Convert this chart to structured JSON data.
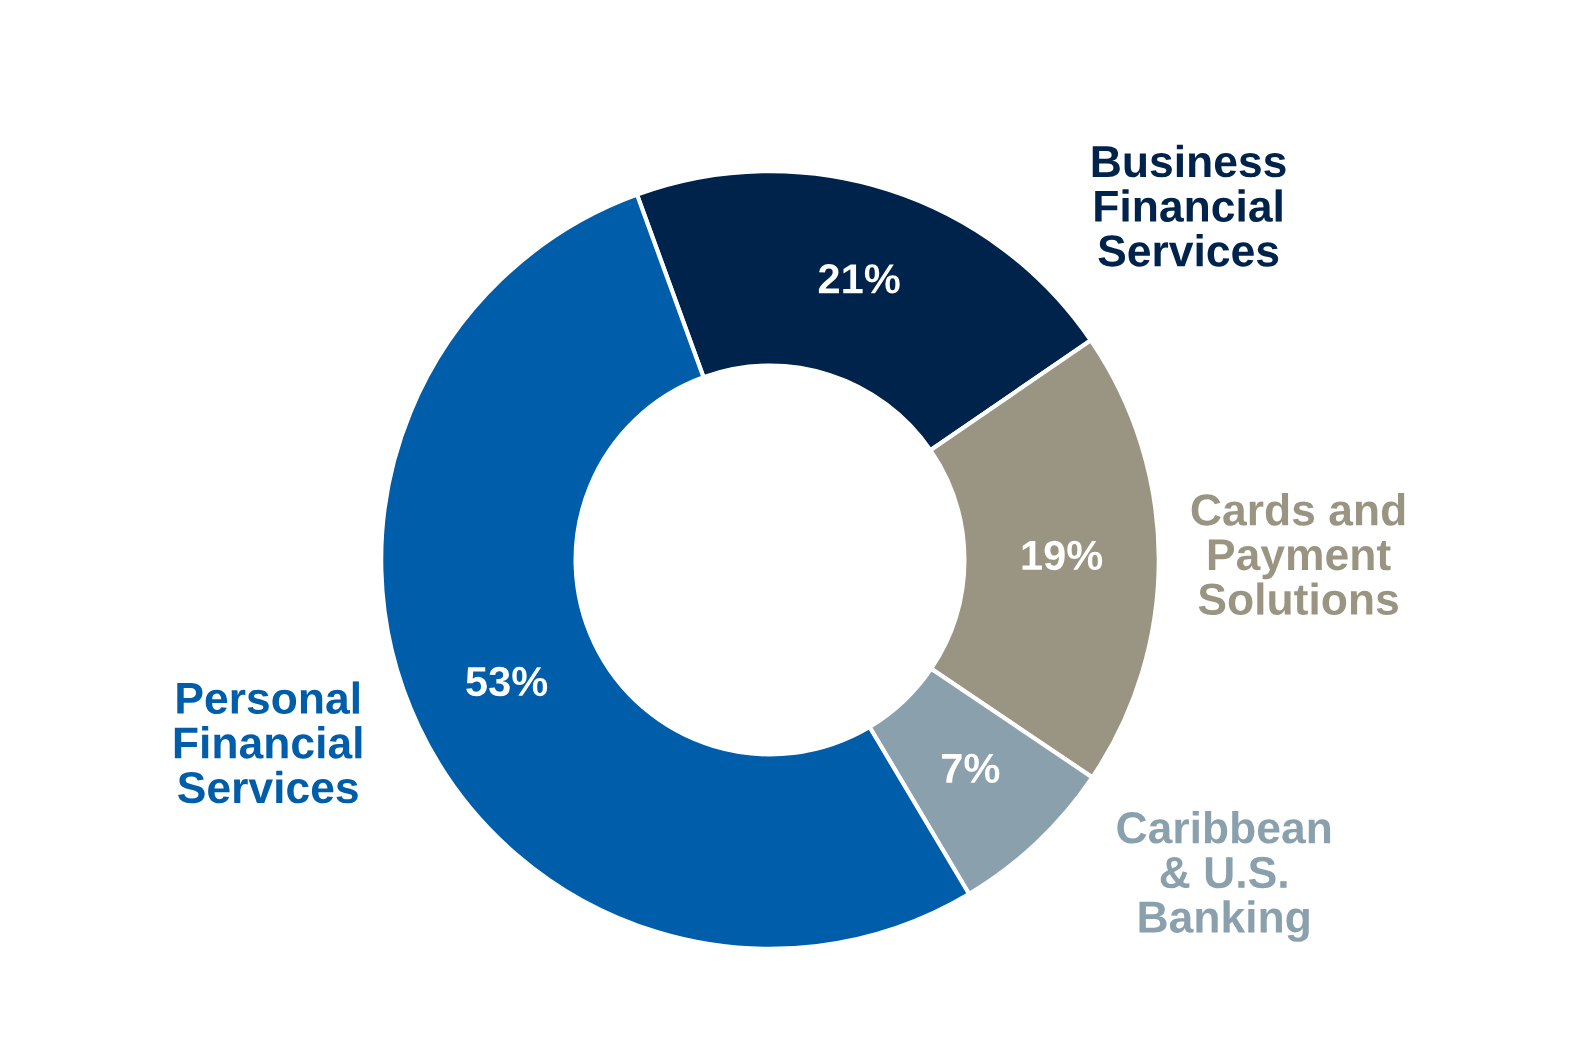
{
  "chart_data": {
    "type": "donut",
    "categories": [
      "Business\nFinancial\nServices",
      "Cards and\nPayment\nSolutions",
      "Caribbean\n& U.S.\nBanking",
      "Personal\nFinancial\nServices"
    ],
    "values": [
      21,
      19,
      7,
      53
    ],
    "value_labels": [
      "21%",
      "19%",
      "7%",
      "53%"
    ],
    "colors": [
      "#00234b",
      "#9a9582",
      "#8aa0ac",
      "#005daa"
    ],
    "legend": false
  }
}
